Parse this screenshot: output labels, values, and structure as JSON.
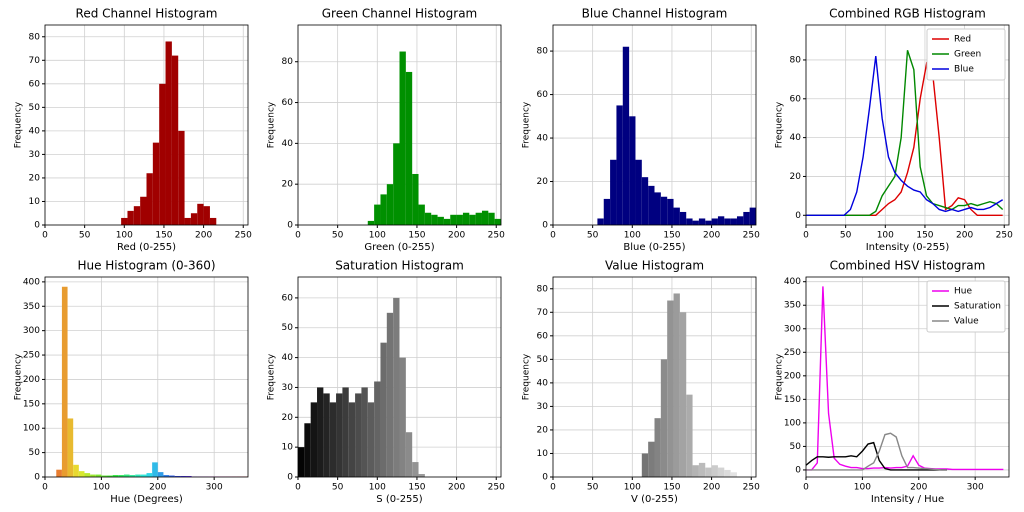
{
  "chart_data": [
    {
      "type": "histogram",
      "title": "Red Channel Histogram",
      "xlabel": "Red (0-255)",
      "ylabel": "Frequency",
      "color": "#a00000",
      "bins": [
        0,
        8,
        16,
        24,
        32,
        40,
        48,
        56,
        64,
        72,
        80,
        88,
        96,
        104,
        112,
        120,
        128,
        136,
        144,
        152,
        160,
        168,
        176,
        184,
        192,
        200,
        208,
        216,
        224,
        232,
        240,
        248,
        256
      ],
      "values": [
        0,
        0,
        0,
        0,
        0,
        0,
        0,
        0,
        0,
        0,
        0,
        0,
        3,
        6,
        8,
        12,
        22,
        35,
        60,
        78,
        72,
        40,
        3,
        5,
        9,
        8,
        3,
        0,
        0,
        0,
        0,
        0
      ],
      "xlim": [
        0,
        256
      ],
      "ylim": [
        0,
        85
      ],
      "xticks": [
        0,
        50,
        100,
        150,
        200,
        250
      ],
      "yticks": [
        0,
        10,
        20,
        30,
        40,
        50,
        60,
        70,
        80
      ],
      "grid": true
    },
    {
      "type": "histogram",
      "title": "Green Channel Histogram",
      "xlabel": "Green (0-255)",
      "ylabel": "Frequency",
      "color": "#009000",
      "bins": [
        0,
        8,
        16,
        24,
        32,
        40,
        48,
        56,
        64,
        72,
        80,
        88,
        96,
        104,
        112,
        120,
        128,
        136,
        144,
        152,
        160,
        168,
        176,
        184,
        192,
        200,
        208,
        216,
        224,
        232,
        240,
        248,
        256
      ],
      "values": [
        0,
        0,
        0,
        0,
        0,
        0,
        0,
        0,
        0,
        0,
        0,
        2,
        10,
        15,
        20,
        40,
        85,
        75,
        25,
        10,
        6,
        5,
        4,
        3,
        5,
        5,
        6,
        5,
        6,
        7,
        6,
        3
      ],
      "xlim": [
        0,
        256
      ],
      "ylim": [
        0,
        98
      ],
      "xticks": [
        0,
        50,
        100,
        150,
        200,
        250
      ],
      "yticks": [
        0,
        20,
        40,
        60,
        80
      ],
      "grid": true
    },
    {
      "type": "histogram",
      "title": "Blue Channel Histogram",
      "xlabel": "Blue (0-255)",
      "ylabel": "Frequency",
      "color": "#000080",
      "bins": [
        0,
        8,
        16,
        24,
        32,
        40,
        48,
        56,
        64,
        72,
        80,
        88,
        96,
        104,
        112,
        120,
        128,
        136,
        144,
        152,
        160,
        168,
        176,
        184,
        192,
        200,
        208,
        216,
        224,
        232,
        240,
        248,
        256
      ],
      "values": [
        0,
        0,
        0,
        0,
        0,
        0,
        0,
        3,
        12,
        30,
        55,
        82,
        50,
        30,
        22,
        18,
        15,
        13,
        12,
        8,
        6,
        3,
        2,
        3,
        2,
        3,
        4,
        3,
        3,
        4,
        6,
        8
      ],
      "xlim": [
        0,
        256
      ],
      "ylim": [
        0,
        92
      ],
      "xticks": [
        0,
        50,
        100,
        150,
        200,
        250
      ],
      "yticks": [
        0,
        20,
        40,
        60,
        80
      ],
      "grid": true
    },
    {
      "type": "line",
      "title": "Combined RGB Histogram",
      "xlabel": "Intensity (0-255)",
      "ylabel": "Frequency",
      "legend": "upper right",
      "x": [
        0,
        8,
        16,
        24,
        32,
        40,
        48,
        56,
        64,
        72,
        80,
        88,
        96,
        104,
        112,
        120,
        128,
        136,
        144,
        152,
        160,
        168,
        176,
        184,
        192,
        200,
        208,
        216,
        224,
        232,
        240,
        248
      ],
      "series": [
        {
          "name": "Red",
          "color": "#dd0000",
          "values": [
            0,
            0,
            0,
            0,
            0,
            0,
            0,
            0,
            0,
            0,
            0,
            0,
            3,
            6,
            8,
            12,
            22,
            35,
            60,
            78,
            72,
            40,
            3,
            5,
            9,
            8,
            3,
            0,
            0,
            0,
            0,
            0
          ]
        },
        {
          "name": "Green",
          "color": "#008800",
          "values": [
            0,
            0,
            0,
            0,
            0,
            0,
            0,
            0,
            0,
            0,
            0,
            2,
            10,
            15,
            20,
            40,
            85,
            75,
            25,
            10,
            6,
            5,
            4,
            3,
            5,
            5,
            6,
            5,
            6,
            7,
            6,
            3
          ]
        },
        {
          "name": "Blue",
          "color": "#0000dd",
          "values": [
            0,
            0,
            0,
            0,
            0,
            0,
            0,
            3,
            12,
            30,
            55,
            82,
            50,
            30,
            22,
            18,
            15,
            13,
            12,
            8,
            6,
            3,
            2,
            3,
            2,
            3,
            4,
            3,
            3,
            4,
            6,
            8
          ]
        }
      ],
      "xlim": [
        0,
        256
      ],
      "ylim": [
        -5,
        98
      ],
      "xticks": [
        0,
        50,
        100,
        150,
        200,
        250
      ],
      "yticks": [
        0,
        20,
        40,
        60,
        80
      ],
      "grid": true
    },
    {
      "type": "histogram",
      "title": "Hue Histogram (0-360)",
      "xlabel": "Hue (Degrees)",
      "ylabel": "Frequency",
      "colormap": "hsv",
      "bins": [
        0,
        10,
        20,
        30,
        40,
        50,
        60,
        70,
        80,
        90,
        100,
        110,
        120,
        130,
        140,
        150,
        160,
        170,
        180,
        190,
        200,
        210,
        220,
        230,
        240,
        250,
        260,
        270,
        280,
        290,
        300,
        310,
        320,
        330,
        340,
        350,
        360
      ],
      "values": [
        0,
        0,
        15,
        390,
        120,
        25,
        12,
        8,
        5,
        5,
        3,
        3,
        4,
        4,
        5,
        4,
        5,
        5,
        8,
        30,
        10,
        4,
        3,
        2,
        2,
        2,
        1,
        1,
        1,
        1,
        1,
        1,
        1,
        1,
        1,
        1
      ],
      "xlim": [
        0,
        360
      ],
      "ylim": [
        0,
        410
      ],
      "xticks": [
        0,
        100,
        200,
        300
      ],
      "yticks": [
        0,
        50,
        100,
        150,
        200,
        250,
        300,
        350,
        400
      ],
      "grid": true
    },
    {
      "type": "histogram",
      "title": "Saturation Histogram",
      "xlabel": "S (0-255)",
      "ylabel": "Frequency",
      "colormap": "gray",
      "bins": [
        0,
        8,
        16,
        24,
        32,
        40,
        48,
        56,
        64,
        72,
        80,
        88,
        96,
        104,
        112,
        120,
        128,
        136,
        144,
        152,
        160,
        168,
        176,
        184,
        192,
        200,
        208,
        216,
        224,
        232,
        240,
        248,
        256
      ],
      "values": [
        10,
        18,
        25,
        30,
        28,
        25,
        28,
        30,
        25,
        28,
        30,
        25,
        32,
        45,
        55,
        60,
        40,
        15,
        5,
        1,
        0,
        0,
        0,
        0,
        0,
        0,
        0,
        0,
        0,
        0,
        0,
        0
      ],
      "xlim": [
        0,
        256
      ],
      "ylim": [
        0,
        67
      ],
      "xticks": [
        0,
        50,
        100,
        150,
        200,
        250
      ],
      "yticks": [
        0,
        10,
        20,
        30,
        40,
        50,
        60
      ],
      "grid": true
    },
    {
      "type": "histogram",
      "title": "Value Histogram",
      "xlabel": "V (0-255)",
      "ylabel": "Frequency",
      "colormap": "gray",
      "bins": [
        0,
        8,
        16,
        24,
        32,
        40,
        48,
        56,
        64,
        72,
        80,
        88,
        96,
        104,
        112,
        120,
        128,
        136,
        144,
        152,
        160,
        168,
        176,
        184,
        192,
        200,
        208,
        216,
        224,
        232,
        240,
        248,
        256
      ],
      "values": [
        0,
        0,
        0,
        0,
        0,
        0,
        0,
        0,
        0,
        0,
        0,
        0,
        0,
        0,
        10,
        15,
        25,
        50,
        75,
        78,
        70,
        35,
        5,
        6,
        4,
        5,
        4,
        3,
        2,
        0,
        0,
        0
      ],
      "xlim": [
        0,
        256
      ],
      "ylim": [
        0,
        85
      ],
      "xticks": [
        0,
        50,
        100,
        150,
        200,
        250
      ],
      "yticks": [
        0,
        10,
        20,
        30,
        40,
        50,
        60,
        70,
        80
      ],
      "grid": true
    },
    {
      "type": "line",
      "title": "Combined HSV Histogram",
      "xlabel": "Intensity / Hue",
      "ylabel": "Frequency",
      "legend": "upper right",
      "series": [
        {
          "name": "Hue",
          "color": "#ee00ee",
          "x": [
            0,
            10,
            20,
            30,
            40,
            50,
            60,
            70,
            80,
            90,
            100,
            110,
            120,
            130,
            140,
            150,
            160,
            170,
            180,
            190,
            200,
            210,
            220,
            230,
            240,
            250,
            260,
            270,
            280,
            290,
            300,
            310,
            320,
            330,
            340,
            350
          ],
          "values": [
            0,
            0,
            15,
            390,
            120,
            25,
            12,
            8,
            5,
            5,
            3,
            3,
            4,
            4,
            5,
            4,
            5,
            5,
            8,
            30,
            10,
            4,
            3,
            2,
            2,
            2,
            1,
            1,
            1,
            1,
            1,
            1,
            1,
            1,
            1,
            1
          ]
        },
        {
          "name": "Saturation",
          "color": "#000000",
          "x": [
            0,
            10,
            20,
            30,
            40,
            50,
            60,
            70,
            80,
            90,
            100,
            110,
            120,
            130,
            140,
            150,
            160,
            170,
            180,
            190,
            200,
            210,
            220,
            230,
            240,
            250
          ],
          "values": [
            10,
            20,
            28,
            28,
            27,
            28,
            28,
            28,
            30,
            28,
            40,
            55,
            58,
            20,
            3,
            0,
            0,
            0,
            0,
            0,
            0,
            0,
            0,
            0,
            0,
            0
          ]
        },
        {
          "name": "Value",
          "color": "#888888",
          "x": [
            0,
            10,
            20,
            30,
            40,
            50,
            60,
            70,
            80,
            90,
            100,
            110,
            120,
            130,
            140,
            150,
            160,
            170,
            180,
            190,
            200,
            210,
            220,
            230,
            240,
            250
          ],
          "values": [
            0,
            0,
            0,
            0,
            0,
            0,
            0,
            0,
            0,
            0,
            0,
            8,
            15,
            40,
            75,
            78,
            70,
            30,
            5,
            5,
            4,
            3,
            2,
            1,
            0,
            0
          ]
        }
      ],
      "xlim": [
        0,
        360
      ],
      "ylim": [
        -15,
        410
      ],
      "xticks": [
        0,
        100,
        200,
        300
      ],
      "yticks": [
        0,
        50,
        100,
        150,
        200,
        250,
        300,
        350,
        400
      ],
      "grid": true
    }
  ]
}
